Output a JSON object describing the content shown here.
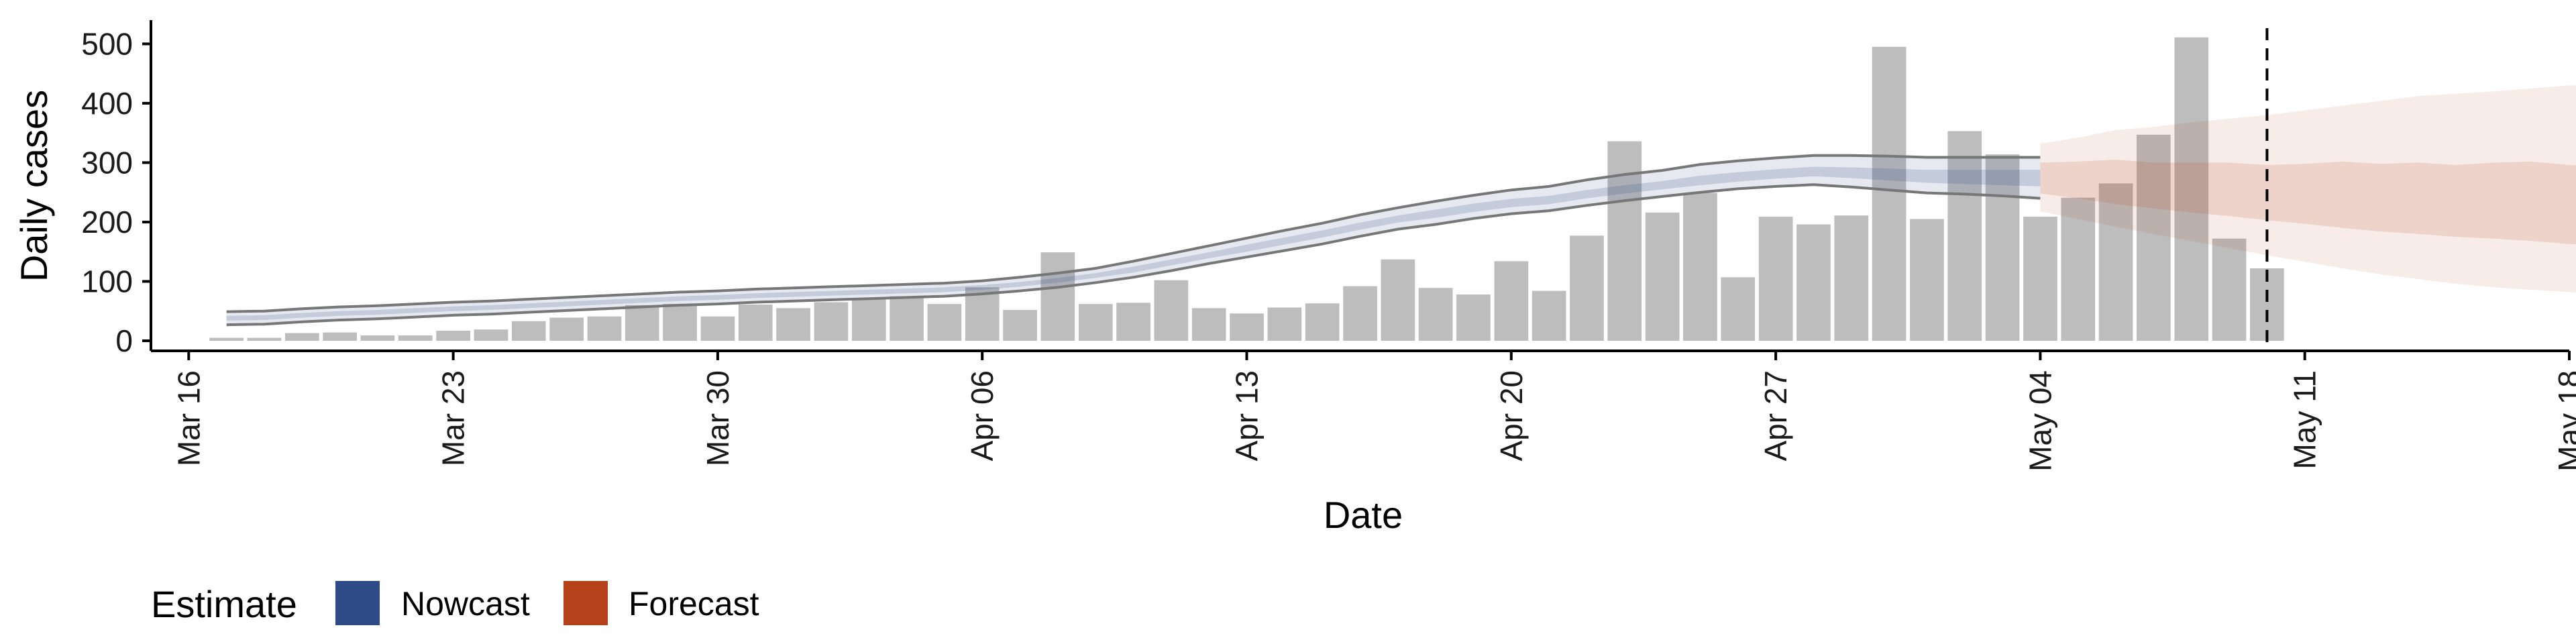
{
  "chart_data": {
    "type": "bar",
    "title": "",
    "xlabel": "Date",
    "ylabel": "Daily cases",
    "ylim": [
      0,
      540
    ],
    "yticks": [
      0,
      100,
      200,
      300,
      400,
      500
    ],
    "x_range": [
      "2020-03-15",
      "2020-05-18"
    ],
    "xticks": [
      {
        "date": "2020-03-16",
        "label": "Mar 16"
      },
      {
        "date": "2020-03-23",
        "label": "Mar 23"
      },
      {
        "date": "2020-03-30",
        "label": "Mar 30"
      },
      {
        "date": "2020-04-06",
        "label": "Apr 06"
      },
      {
        "date": "2020-04-13",
        "label": "Apr 13"
      },
      {
        "date": "2020-04-20",
        "label": "Apr 20"
      },
      {
        "date": "2020-04-27",
        "label": "Apr 27"
      },
      {
        "date": "2020-05-04",
        "label": "May 04"
      },
      {
        "date": "2020-05-11",
        "label": "May 11"
      },
      {
        "date": "2020-05-18",
        "label": "May 18"
      }
    ],
    "grid": false,
    "bar_color": "#bdbdbd",
    "bars": {
      "start_date": "2020-03-17",
      "values": [
        5,
        5,
        13,
        14,
        9,
        9,
        17,
        19,
        33,
        39,
        41,
        60,
        62,
        41,
        61,
        55,
        65,
        72,
        75,
        62,
        90,
        52,
        149,
        62,
        64,
        102,
        55,
        46,
        56,
        63,
        92,
        137,
        89,
        78,
        134,
        84,
        177,
        336,
        216,
        249,
        107,
        209,
        196,
        211,
        495,
        205,
        353,
        314,
        209,
        241,
        265,
        347,
        511,
        172,
        122
      ]
    },
    "vertical_line": {
      "date": "2020-05-10",
      "style": "dashed",
      "color": "#000000"
    },
    "series": [
      {
        "name": "Nowcast",
        "color": "#2e4a87",
        "x_start": "2020-03-17",
        "median": [
          38,
          39,
          43,
          46,
          48,
          51,
          54,
          56,
          59,
          62,
          65,
          68,
          71,
          73,
          76,
          78,
          80,
          82,
          84,
          86,
          90,
          95,
          102,
          110,
          120,
          132,
          144,
          156,
          168,
          180,
          193,
          205,
          214,
          224,
          232,
          237,
          247,
          255,
          262,
          270,
          276,
          281,
          285,
          283,
          280,
          277,
          276,
          275,
          274
        ],
        "inner": {
          "lower": [
            34,
            35,
            39,
            42,
            44,
            47,
            50,
            52,
            55,
            58,
            61,
            64,
            67,
            69,
            72,
            74,
            76,
            78,
            80,
            82,
            86,
            91,
            98,
            106,
            115,
            127,
            139,
            150,
            162,
            174,
            187,
            199,
            207,
            217,
            225,
            230,
            240,
            248,
            255,
            262,
            268,
            273,
            277,
            274,
            270,
            266,
            264,
            262,
            260
          ],
          "upper": [
            42,
            43,
            47,
            50,
            52,
            55,
            58,
            60,
            63,
            66,
            69,
            72,
            75,
            77,
            80,
            82,
            84,
            86,
            88,
            90,
            94,
            99,
            106,
            114,
            125,
            137,
            149,
            162,
            174,
            186,
            199,
            211,
            221,
            231,
            239,
            244,
            254,
            262,
            269,
            278,
            284,
            289,
            293,
            292,
            290,
            288,
            288,
            288,
            288
          ]
        },
        "outer": {
          "lower": [
            27,
            28,
            32,
            35,
            37,
            40,
            43,
            45,
            48,
            51,
            54,
            57,
            60,
            62,
            65,
            67,
            69,
            71,
            73,
            75,
            79,
            84,
            90,
            98,
            107,
            118,
            130,
            141,
            152,
            163,
            176,
            188,
            196,
            206,
            214,
            219,
            228,
            236,
            243,
            250,
            256,
            260,
            263,
            259,
            254,
            249,
            247,
            244,
            240
          ],
          "upper": [
            49,
            50,
            54,
            57,
            59,
            62,
            65,
            67,
            70,
            73,
            76,
            79,
            82,
            84,
            87,
            89,
            91,
            93,
            95,
            97,
            101,
            107,
            114,
            122,
            134,
            147,
            160,
            173,
            186,
            198,
            212,
            224,
            235,
            245,
            254,
            260,
            271,
            280,
            287,
            297,
            303,
            308,
            312,
            312,
            311,
            309,
            309,
            309,
            309
          ]
        }
      },
      {
        "name": "Forecast",
        "color": "#b5401a",
        "x_start": "2020-05-04",
        "median": [
          268,
          264,
          260,
          258,
          256,
          253,
          248,
          243,
          238,
          234,
          232,
          229,
          228,
          226,
          225,
          224
        ],
        "inner": {
          "lower": [
            248,
            240,
            230,
            223,
            216,
            210,
            203,
            197,
            190,
            184,
            180,
            175,
            172,
            168,
            163,
            158
          ],
          "upper": [
            300,
            302,
            305,
            300,
            300,
            300,
            296,
            298,
            302,
            298,
            300,
            296,
            300,
            302,
            296,
            294
          ]
        },
        "outer": {
          "lower": [
            218,
            205,
            192,
            180,
            168,
            156,
            144,
            133,
            122,
            112,
            104,
            96,
            90,
            86,
            82,
            78
          ],
          "upper": [
            332,
            342,
            355,
            360,
            368,
            374,
            380,
            388,
            396,
            404,
            412,
            416,
            420,
            425,
            430,
            432
          ]
        }
      }
    ],
    "legend": {
      "title": "Estimate",
      "position": "bottom-left",
      "items": [
        {
          "label": "Nowcast",
          "color": "#2e4a87"
        },
        {
          "label": "Forecast",
          "color": "#b5401a"
        }
      ]
    }
  }
}
